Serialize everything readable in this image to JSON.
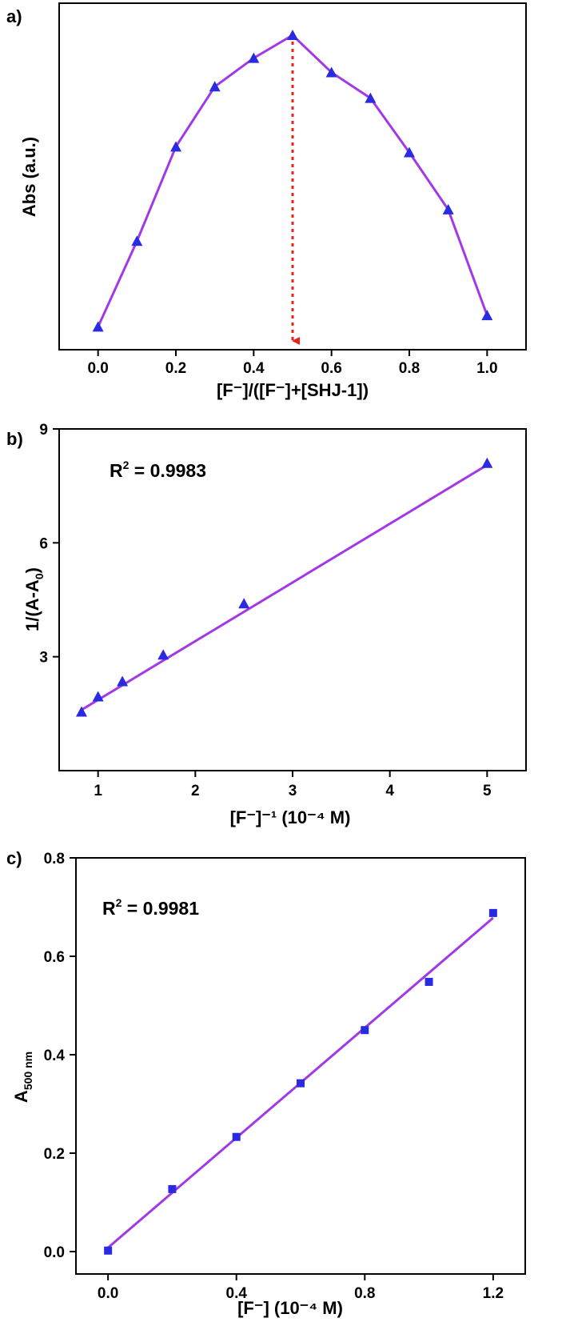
{
  "chart_data": [
    {
      "panel": "a)",
      "type": "line",
      "xlabel": "[F⁻]/([F⁻]+[SHJ-1])",
      "ylabel": "Abs (a.u.)",
      "xlim": [
        -0.1,
        1.1
      ],
      "xticks": [
        "0.0",
        "0.2",
        "0.4",
        "0.6",
        "0.8",
        "1.0"
      ],
      "yticks": [],
      "ylim": [
        0,
        1.1
      ],
      "marker": "triangle",
      "line_color": "#a238e6",
      "marker_color": "#2a2ae0",
      "x": [
        0.0,
        0.1,
        0.2,
        0.3,
        0.4,
        0.5,
        0.6,
        0.7,
        0.8,
        0.9,
        1.0
      ],
      "y": [
        0.08,
        0.38,
        0.71,
        0.92,
        1.02,
        1.1,
        0.97,
        0.88,
        0.69,
        0.49,
        0.12
      ],
      "annotation": {
        "type": "dashed-arrow",
        "x": 0.5,
        "color": "#e8231b"
      }
    },
    {
      "panel": "b)",
      "type": "scatter",
      "xlabel": "[F⁻]⁻¹ (10⁻⁴ M)",
      "ylabel": "1/(A-A₀)",
      "xlim": [
        0.6,
        5.4
      ],
      "ylim": [
        0,
        9
      ],
      "xticks": [
        "1",
        "2",
        "3",
        "4",
        "5"
      ],
      "yticks": [
        "3",
        "6",
        "9"
      ],
      "marker": "triangle",
      "marker_color": "#2a2ae0",
      "line_color": "#a238e6",
      "x": [
        0.83,
        1.0,
        1.25,
        1.67,
        2.5,
        5.0
      ],
      "y": [
        1.55,
        1.95,
        2.35,
        3.05,
        4.4,
        8.1
      ],
      "fit": {
        "x": [
          0.83,
          5.0
        ],
        "y": [
          1.6,
          8.05
        ]
      },
      "r2_text": "R",
      "r2_sup": "2",
      "r2_value": " = 0.9983"
    },
    {
      "panel": "c)",
      "type": "scatter",
      "xlabel": "[F⁻] (10⁻⁴ M)",
      "ylabel": "A",
      "ylabel_sub": "500 nm",
      "xlim": [
        -0.1,
        1.3
      ],
      "ylim": [
        -0.05,
        0.8
      ],
      "xticks": [
        "0.0",
        "0.4",
        "0.8",
        "1.2"
      ],
      "yticks": [
        "0.0",
        "0.2",
        "0.4",
        "0.6",
        "0.8"
      ],
      "marker": "square",
      "marker_color": "#2a2ae0",
      "line_color": "#a238e6",
      "x": [
        0.0,
        0.2,
        0.4,
        0.6,
        0.8,
        1.0,
        1.2
      ],
      "y": [
        0.002,
        0.127,
        0.233,
        0.342,
        0.45,
        0.548,
        0.688
      ],
      "fit": {
        "x": [
          0.0,
          1.2
        ],
        "y": [
          0.008,
          0.678
        ]
      },
      "r2_text": "R",
      "r2_sup": "2",
      "r2_value": " = 0.9981"
    }
  ]
}
